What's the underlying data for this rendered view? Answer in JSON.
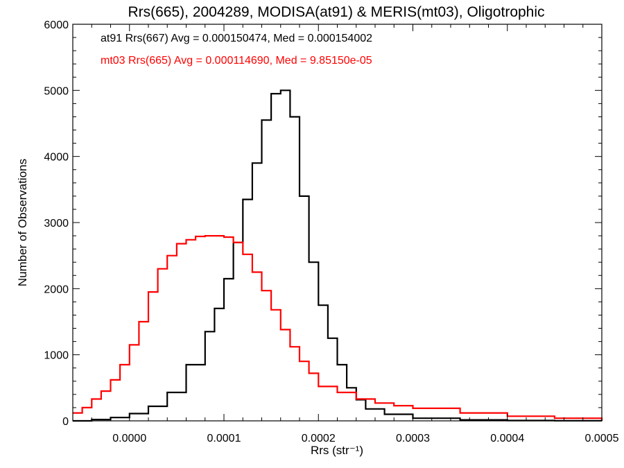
{
  "chart_data": {
    "type": "line",
    "title": "Rrs(665), 2004289, MODISA(at91) & MERIS(mt03), Oligotrophic",
    "xlabel": "Rrs (str⁻¹)",
    "ylabel": "Number of Observations",
    "xlim": [
      -6e-05,
      0.0005
    ],
    "ylim": [
      0,
      6000
    ],
    "x_ticks": [
      0.0,
      0.0001,
      0.0002,
      0.0003,
      0.0004,
      0.0005
    ],
    "x_tick_labels": [
      "0.0000",
      "0.0001",
      "0.0002",
      "0.0003",
      "0.0004",
      "0.0005"
    ],
    "y_ticks": [
      0,
      1000,
      2000,
      3000,
      4000,
      5000,
      6000
    ],
    "y_tick_labels": [
      "0",
      "1000",
      "2000",
      "3000",
      "4000",
      "5000",
      "6000"
    ],
    "grid": false,
    "legend_position": "top-left",
    "series": [
      {
        "name": "at91 Rrs(667) Avg = 0.000150474, Med = 0.000154002",
        "color": "#000000",
        "x": [
          -6e-05,
          -4e-05,
          -2e-05,
          0.0,
          2e-05,
          4e-05,
          6e-05,
          8e-05,
          9e-05,
          0.0001,
          0.00011,
          0.00012,
          0.00013,
          0.00014,
          0.00015,
          0.00016,
          0.00017,
          0.00018,
          0.00019,
          0.0002,
          0.00021,
          0.00022,
          0.00023,
          0.00024,
          0.00025,
          0.00027,
          0.0003,
          0.00035,
          0.0004,
          0.00045,
          0.0005
        ],
        "y": [
          0,
          20,
          50,
          110,
          220,
          430,
          850,
          1350,
          1700,
          2150,
          2700,
          3350,
          3900,
          4550,
          4950,
          5000,
          4600,
          3400,
          2400,
          1750,
          1250,
          850,
          500,
          320,
          180,
          100,
          40,
          15,
          5,
          2,
          0
        ]
      },
      {
        "name": "mt03 Rrs(665) Avg = 0.000114690, Med = 9.85150e-05",
        "color": "#ff0000",
        "x": [
          -6e-05,
          -5e-05,
          -4e-05,
          -3e-05,
          -2e-05,
          -1e-05,
          0.0,
          1e-05,
          2e-05,
          3e-05,
          4e-05,
          5e-05,
          6e-05,
          7e-05,
          8e-05,
          9e-05,
          0.0001,
          0.00011,
          0.00012,
          0.00013,
          0.00014,
          0.00015,
          0.00016,
          0.00017,
          0.00018,
          0.00019,
          0.0002,
          0.00022,
          0.00024,
          0.00026,
          0.00028,
          0.0003,
          0.00035,
          0.0004,
          0.00045,
          0.0005
        ],
        "y": [
          120,
          200,
          330,
          450,
          620,
          850,
          1150,
          1500,
          1950,
          2300,
          2500,
          2680,
          2740,
          2790,
          2800,
          2800,
          2780,
          2700,
          2520,
          2250,
          1970,
          1680,
          1380,
          1120,
          900,
          720,
          520,
          430,
          330,
          270,
          230,
          190,
          120,
          70,
          40,
          10
        ]
      }
    ]
  }
}
